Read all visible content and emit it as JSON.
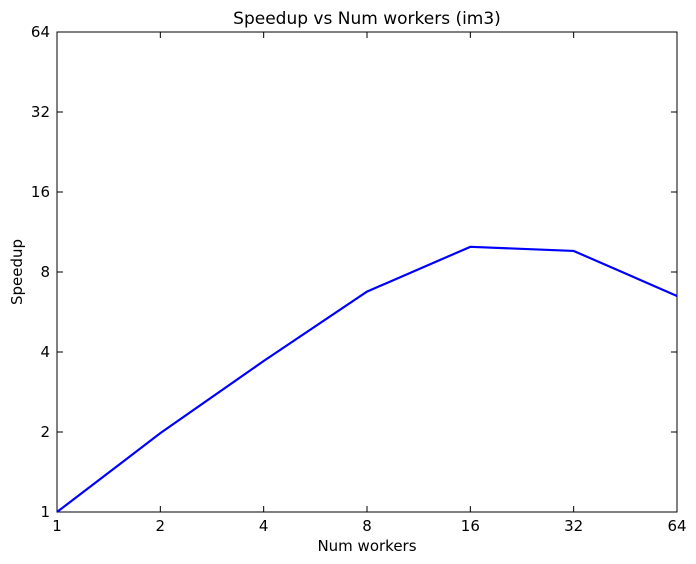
{
  "chart_data": {
    "type": "line",
    "title": "Speedup vs Num workers (im3)",
    "xlabel": "Num workers",
    "ylabel": "Speedup",
    "xscale": "log2",
    "yscale": "log2",
    "xlim": [
      1,
      64
    ],
    "ylim": [
      1,
      64
    ],
    "grid": false,
    "x_ticks": [
      "1",
      "2",
      "4",
      "8",
      "16",
      "32",
      "64"
    ],
    "y_ticks": [
      "1",
      "2",
      "4",
      "8",
      "16",
      "32",
      "64"
    ],
    "series": [
      {
        "color": "#0000ff",
        "x": [
          1,
          2,
          4,
          8,
          16,
          32,
          64
        ],
        "y": [
          1.0,
          1.98,
          3.7,
          6.75,
          9.95,
          9.6,
          6.5
        ]
      }
    ]
  }
}
